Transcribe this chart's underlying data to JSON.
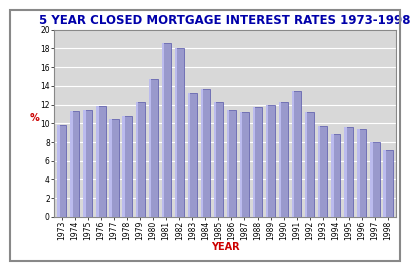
{
  "title": "5 YEAR CLOSED MORTGAGE INTEREST RATES 1973-1998",
  "xlabel": "YEAR",
  "ylabel": "%",
  "years": [
    1973,
    1974,
    1975,
    1976,
    1977,
    1978,
    1979,
    1980,
    1981,
    1982,
    1983,
    1984,
    1985,
    1986,
    1987,
    1988,
    1989,
    1990,
    1991,
    1992,
    1993,
    1994,
    1995,
    1996,
    1997,
    1998
  ],
  "values": [
    9.85,
    11.35,
    11.45,
    11.85,
    10.45,
    10.75,
    12.25,
    14.75,
    18.55,
    18.1,
    13.25,
    13.65,
    12.25,
    11.4,
    11.25,
    11.75,
    11.95,
    12.25,
    13.45,
    11.2,
    9.75,
    8.9,
    9.65,
    9.4,
    8.05,
    7.1
  ],
  "bar_color": "#9999cc",
  "bar_edge_color": "#5555aa",
  "bar_highlight": "#bbbbee",
  "fig_bg_color": "#ffffff",
  "plot_bg_color": "#d8d8d8",
  "title_color": "#0000aa",
  "xlabel_color": "#cc0000",
  "ylabel_color": "#cc0000",
  "tick_color": "#000000",
  "grid_color": "#ffffff",
  "border_color": "#888888",
  "ylim": [
    0,
    20
  ],
  "yticks": [
    0,
    2,
    4,
    6,
    8,
    10,
    12,
    14,
    16,
    18,
    20
  ],
  "title_fontsize": 8.5,
  "label_fontsize": 7,
  "tick_fontsize": 5.5
}
